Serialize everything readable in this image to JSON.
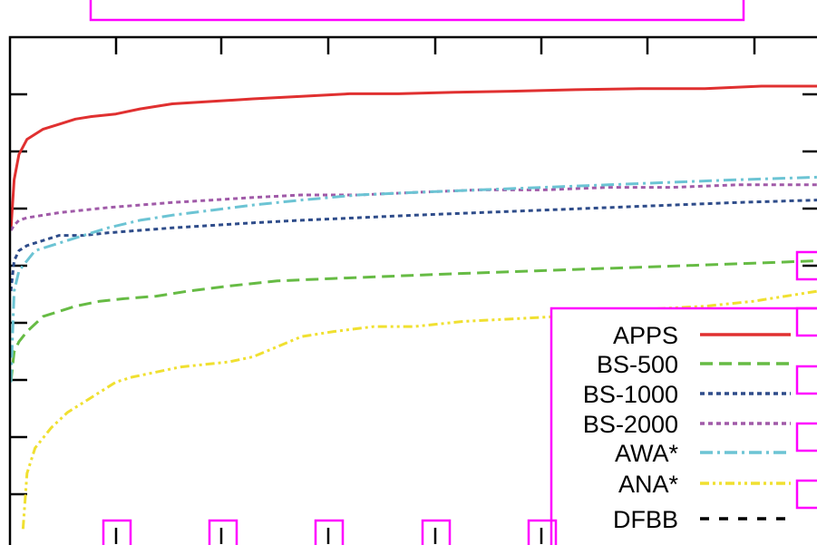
{
  "chart_data": {
    "type": "line",
    "title": "",
    "xlabel": "",
    "ylabel": "",
    "xlim": [
      0,
      1
    ],
    "ylim": [
      0,
      1
    ],
    "grid": false,
    "legend_position": "bottom-right",
    "series": [
      {
        "name": "APPS",
        "color": "#e03030",
        "dash": "solid",
        "x": [
          0,
          0.004,
          0.01,
          0.02,
          0.04,
          0.06,
          0.08,
          0.1,
          0.13,
          0.16,
          0.2,
          0.25,
          0.3,
          0.36,
          0.42,
          0.48,
          0.55,
          0.62,
          0.7,
          0.78,
          0.86,
          0.93,
          1.0
        ],
        "y": [
          0.62,
          0.72,
          0.77,
          0.8,
          0.82,
          0.83,
          0.84,
          0.845,
          0.85,
          0.86,
          0.87,
          0.875,
          0.88,
          0.885,
          0.89,
          0.89,
          0.893,
          0.895,
          0.898,
          0.9,
          0.9,
          0.905,
          0.905
        ]
      },
      {
        "name": "BS-500",
        "color": "#66bb44",
        "dash": "dashed",
        "x": [
          0,
          0.004,
          0.01,
          0.02,
          0.04,
          0.06,
          0.08,
          0.11,
          0.14,
          0.18,
          0.22,
          0.27,
          0.33,
          0.4,
          0.48,
          0.56,
          0.65,
          0.74,
          0.83,
          0.92,
          1.0
        ],
        "y": [
          0.32,
          0.38,
          0.4,
          0.42,
          0.45,
          0.46,
          0.47,
          0.48,
          0.485,
          0.49,
          0.5,
          0.51,
          0.52,
          0.525,
          0.53,
          0.535,
          0.54,
          0.545,
          0.55,
          0.555,
          0.56
        ]
      },
      {
        "name": "BS-1000",
        "color": "#2e4c8a",
        "dash": "dotted",
        "x": [
          0,
          0.004,
          0.01,
          0.02,
          0.04,
          0.06,
          0.09,
          0.12,
          0.16,
          0.2,
          0.25,
          0.3,
          0.36,
          0.43,
          0.5,
          0.58,
          0.66,
          0.74,
          0.82,
          0.9,
          1.0
        ],
        "y": [
          0.5,
          0.56,
          0.58,
          0.59,
          0.6,
          0.61,
          0.61,
          0.615,
          0.62,
          0.625,
          0.63,
          0.635,
          0.64,
          0.645,
          0.65,
          0.655,
          0.66,
          0.665,
          0.67,
          0.675,
          0.68
        ]
      },
      {
        "name": "BS-2000",
        "color": "#a05aa8",
        "dash": "dotted",
        "x": [
          0,
          0.004,
          0.01,
          0.02,
          0.04,
          0.06,
          0.09,
          0.12,
          0.16,
          0.2,
          0.25,
          0.3,
          0.36,
          0.43,
          0.5,
          0.58,
          0.66,
          0.74,
          0.82,
          0.9,
          1.0
        ],
        "y": [
          0.62,
          0.63,
          0.64,
          0.645,
          0.65,
          0.655,
          0.66,
          0.665,
          0.67,
          0.675,
          0.68,
          0.685,
          0.69,
          0.69,
          0.695,
          0.7,
          0.7,
          0.705,
          0.705,
          0.71,
          0.71
        ]
      },
      {
        "name": "AWA*",
        "color": "#6cc4d4",
        "dash": "dashdot",
        "x": [
          0,
          0.004,
          0.01,
          0.02,
          0.03,
          0.05,
          0.07,
          0.09,
          0.12,
          0.16,
          0.2,
          0.25,
          0.3,
          0.36,
          0.43,
          0.5,
          0.58,
          0.66,
          0.74,
          0.82,
          0.9,
          1.0
        ],
        "y": [
          0.32,
          0.5,
          0.54,
          0.56,
          0.58,
          0.59,
          0.6,
          0.61,
          0.625,
          0.64,
          0.65,
          0.66,
          0.67,
          0.68,
          0.69,
          0.695,
          0.7,
          0.705,
          0.71,
          0.715,
          0.72,
          0.725
        ]
      },
      {
        "name": "ANA*",
        "color": "#f0e030",
        "dash": "dashdotdot",
        "x": [
          0.015,
          0.02,
          0.03,
          0.05,
          0.07,
          0.09,
          0.11,
          0.13,
          0.15,
          0.18,
          0.21,
          0.24,
          0.27,
          0.3,
          0.33,
          0.36,
          0.4,
          0.45,
          0.5,
          0.56,
          0.62,
          0.68,
          0.74,
          0.8,
          0.86,
          0.92,
          1.0
        ],
        "y": [
          0.03,
          0.14,
          0.19,
          0.23,
          0.26,
          0.28,
          0.3,
          0.32,
          0.33,
          0.34,
          0.35,
          0.355,
          0.36,
          0.37,
          0.39,
          0.41,
          0.42,
          0.43,
          0.43,
          0.44,
          0.445,
          0.45,
          0.46,
          0.465,
          0.47,
          0.48,
          0.5
        ]
      },
      {
        "name": "DFBB",
        "color": "#000000",
        "dash": "dashed-black",
        "x": [],
        "y": []
      }
    ]
  }
}
